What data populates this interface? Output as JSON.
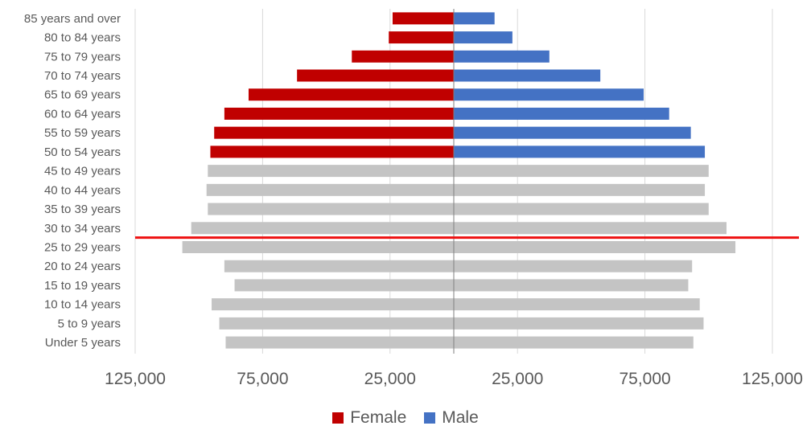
{
  "chart_data": {
    "type": "bar",
    "orientation": "horizontal",
    "layout": "population-pyramid",
    "categories": [
      "85 years and over",
      "80 to 84 years",
      "75 to 79 years",
      "70 to 74 years",
      "65 to 69 years",
      "60 to 64 years",
      "55 to 59 years",
      "50 to 54 years",
      "45 to 49 years",
      "40 to 44 years",
      "35 to 39 years",
      "30 to 34 years",
      "25 to 29 years",
      "20 to 24 years",
      "15 to 19 years",
      "10 to 14 years",
      "5 to 9 years",
      "Under 5 years"
    ],
    "series": [
      {
        "name": "Female",
        "color": "#c00000",
        "values": [
          24000,
          25500,
          40000,
          61500,
          80500,
          90000,
          94000,
          95500,
          96500,
          97000,
          96500,
          103000,
          106500,
          90000,
          86000,
          95000,
          92000,
          89500
        ]
      },
      {
        "name": "Male",
        "color": "#4472c4",
        "values": [
          16000,
          23000,
          37500,
          57500,
          74500,
          84500,
          93000,
          98500,
          100000,
          98500,
          100000,
          107000,
          110500,
          93500,
          92000,
          96500,
          98000,
          94000
        ]
      }
    ],
    "highlight_colored_from_category": "50 to 54 years",
    "muted_color": "#c4c4c4",
    "reference_line": {
      "between_categories": [
        "30 to 34 years",
        "25 to 29 years"
      ],
      "color": "#ee1111"
    },
    "xlim": [
      -125000,
      125000
    ],
    "xticks": [
      -125000,
      -75000,
      -25000,
      25000,
      75000,
      125000
    ],
    "xtick_labels": [
      "125,000",
      "75,000",
      "25,000",
      "25,000",
      "75,000",
      "125,000"
    ],
    "grid": true,
    "legend": {
      "position": "bottom",
      "entries": [
        "Female",
        "Male"
      ]
    },
    "title": "",
    "xlabel": "",
    "ylabel": ""
  }
}
